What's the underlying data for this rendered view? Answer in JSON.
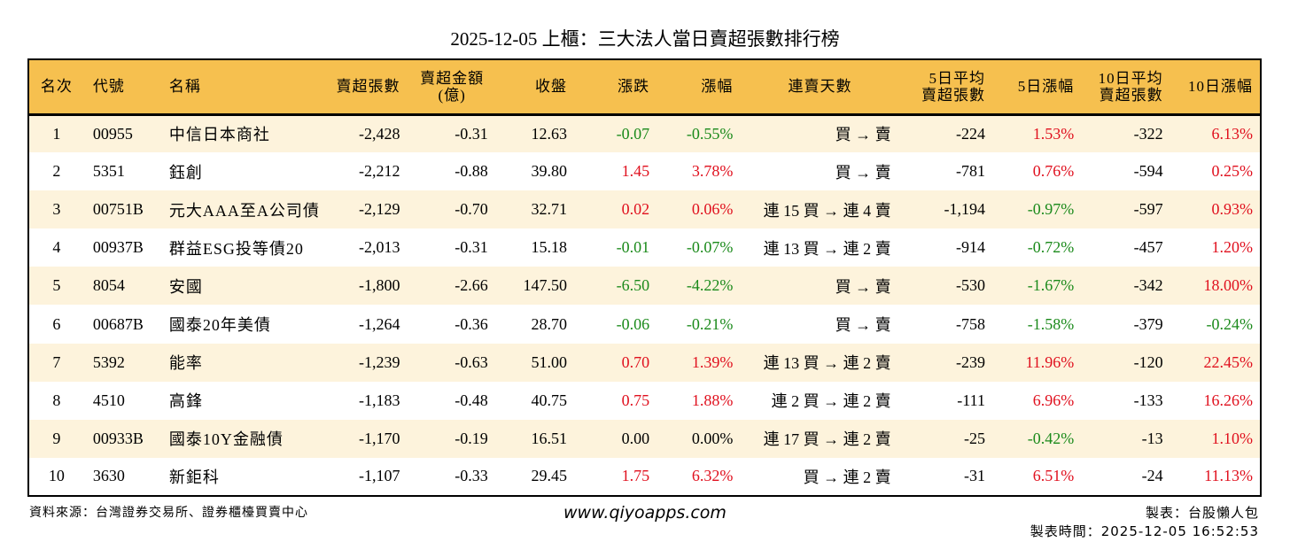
{
  "title": "2025-12-05 上櫃：三大法人當日賣超張數排行榜",
  "colors": {
    "header_bg": "#f6c04f",
    "stripe": "#fdf3dc",
    "up": "#e0101e",
    "down": "#1b8a1b"
  },
  "headers": [
    "名次",
    "代號",
    "名稱",
    "賣超張數",
    "賣超金額\n(億)",
    "收盤",
    "漲跌",
    "漲幅",
    "連賣天數",
    "5日平均\n賣超張數",
    "5日漲幅",
    "10日平均\n賣超張數",
    "10日漲幅"
  ],
  "rows": [
    {
      "rank": "1",
      "code": "00955",
      "name": "中信日本商社",
      "net": "-2,428",
      "amt": "-0.31",
      "close": "12.63",
      "chg": "-0.07",
      "pct": "-0.55%",
      "streak": "買 → 賣",
      "avg5": "-224",
      "pct5": "1.53%",
      "avg10": "-322",
      "pct10": "6.13%"
    },
    {
      "rank": "2",
      "code": "5351",
      "name": "鈺創",
      "net": "-2,212",
      "amt": "-0.88",
      "close": "39.80",
      "chg": "1.45",
      "pct": "3.78%",
      "streak": "買 → 賣",
      "avg5": "-781",
      "pct5": "0.76%",
      "avg10": "-594",
      "pct10": "0.25%"
    },
    {
      "rank": "3",
      "code": "00751B",
      "name": "元大AAA至A公司債",
      "net": "-2,129",
      "amt": "-0.70",
      "close": "32.71",
      "chg": "0.02",
      "pct": "0.06%",
      "streak": "連 15 買 → 連 4 賣",
      "avg5": "-1,194",
      "pct5": "-0.97%",
      "avg10": "-597",
      "pct10": "0.93%"
    },
    {
      "rank": "4",
      "code": "00937B",
      "name": "群益ESG投等債20",
      "net": "-2,013",
      "amt": "-0.31",
      "close": "15.18",
      "chg": "-0.01",
      "pct": "-0.07%",
      "streak": "連 13 買 → 連 2 賣",
      "avg5": "-914",
      "pct5": "-0.72%",
      "avg10": "-457",
      "pct10": "1.20%"
    },
    {
      "rank": "5",
      "code": "8054",
      "name": "安國",
      "net": "-1,800",
      "amt": "-2.66",
      "close": "147.50",
      "chg": "-6.50",
      "pct": "-4.22%",
      "streak": "買 → 賣",
      "avg5": "-530",
      "pct5": "-1.67%",
      "avg10": "-342",
      "pct10": "18.00%"
    },
    {
      "rank": "6",
      "code": "00687B",
      "name": "國泰20年美債",
      "net": "-1,264",
      "amt": "-0.36",
      "close": "28.70",
      "chg": "-0.06",
      "pct": "-0.21%",
      "streak": "買 → 賣",
      "avg5": "-758",
      "pct5": "-1.58%",
      "avg10": "-379",
      "pct10": "-0.24%"
    },
    {
      "rank": "7",
      "code": "5392",
      "name": "能率",
      "net": "-1,239",
      "amt": "-0.63",
      "close": "51.00",
      "chg": "0.70",
      "pct": "1.39%",
      "streak": "連 13 買 → 連 2 賣",
      "avg5": "-239",
      "pct5": "11.96%",
      "avg10": "-120",
      "pct10": "22.45%"
    },
    {
      "rank": "8",
      "code": "4510",
      "name": "高鋒",
      "net": "-1,183",
      "amt": "-0.48",
      "close": "40.75",
      "chg": "0.75",
      "pct": "1.88%",
      "streak": "連 2 買 → 連 2 賣",
      "avg5": "-111",
      "pct5": "6.96%",
      "avg10": "-133",
      "pct10": "16.26%"
    },
    {
      "rank": "9",
      "code": "00933B",
      "name": "國泰10Y金融債",
      "net": "-1,170",
      "amt": "-0.19",
      "close": "16.51",
      "chg": "0.00",
      "pct": "0.00%",
      "streak": "連 17 買 → 連 2 賣",
      "avg5": "-25",
      "pct5": "-0.42%",
      "avg10": "-13",
      "pct10": "1.10%"
    },
    {
      "rank": "10",
      "code": "3630",
      "name": "新鉅科",
      "net": "-1,107",
      "amt": "-0.33",
      "close": "29.45",
      "chg": "1.75",
      "pct": "6.32%",
      "streak": "買 → 連 2 賣",
      "avg5": "-31",
      "pct5": "6.51%",
      "avg10": "-24",
      "pct10": "11.13%"
    }
  ],
  "footer": {
    "source": "資料來源：台灣證券交易所、證券櫃檯買賣中心",
    "website": "www.qiyoapps.com",
    "maker": "製表：台股懶人包",
    "time": "製表時間：2025-12-05 16:52:53"
  }
}
